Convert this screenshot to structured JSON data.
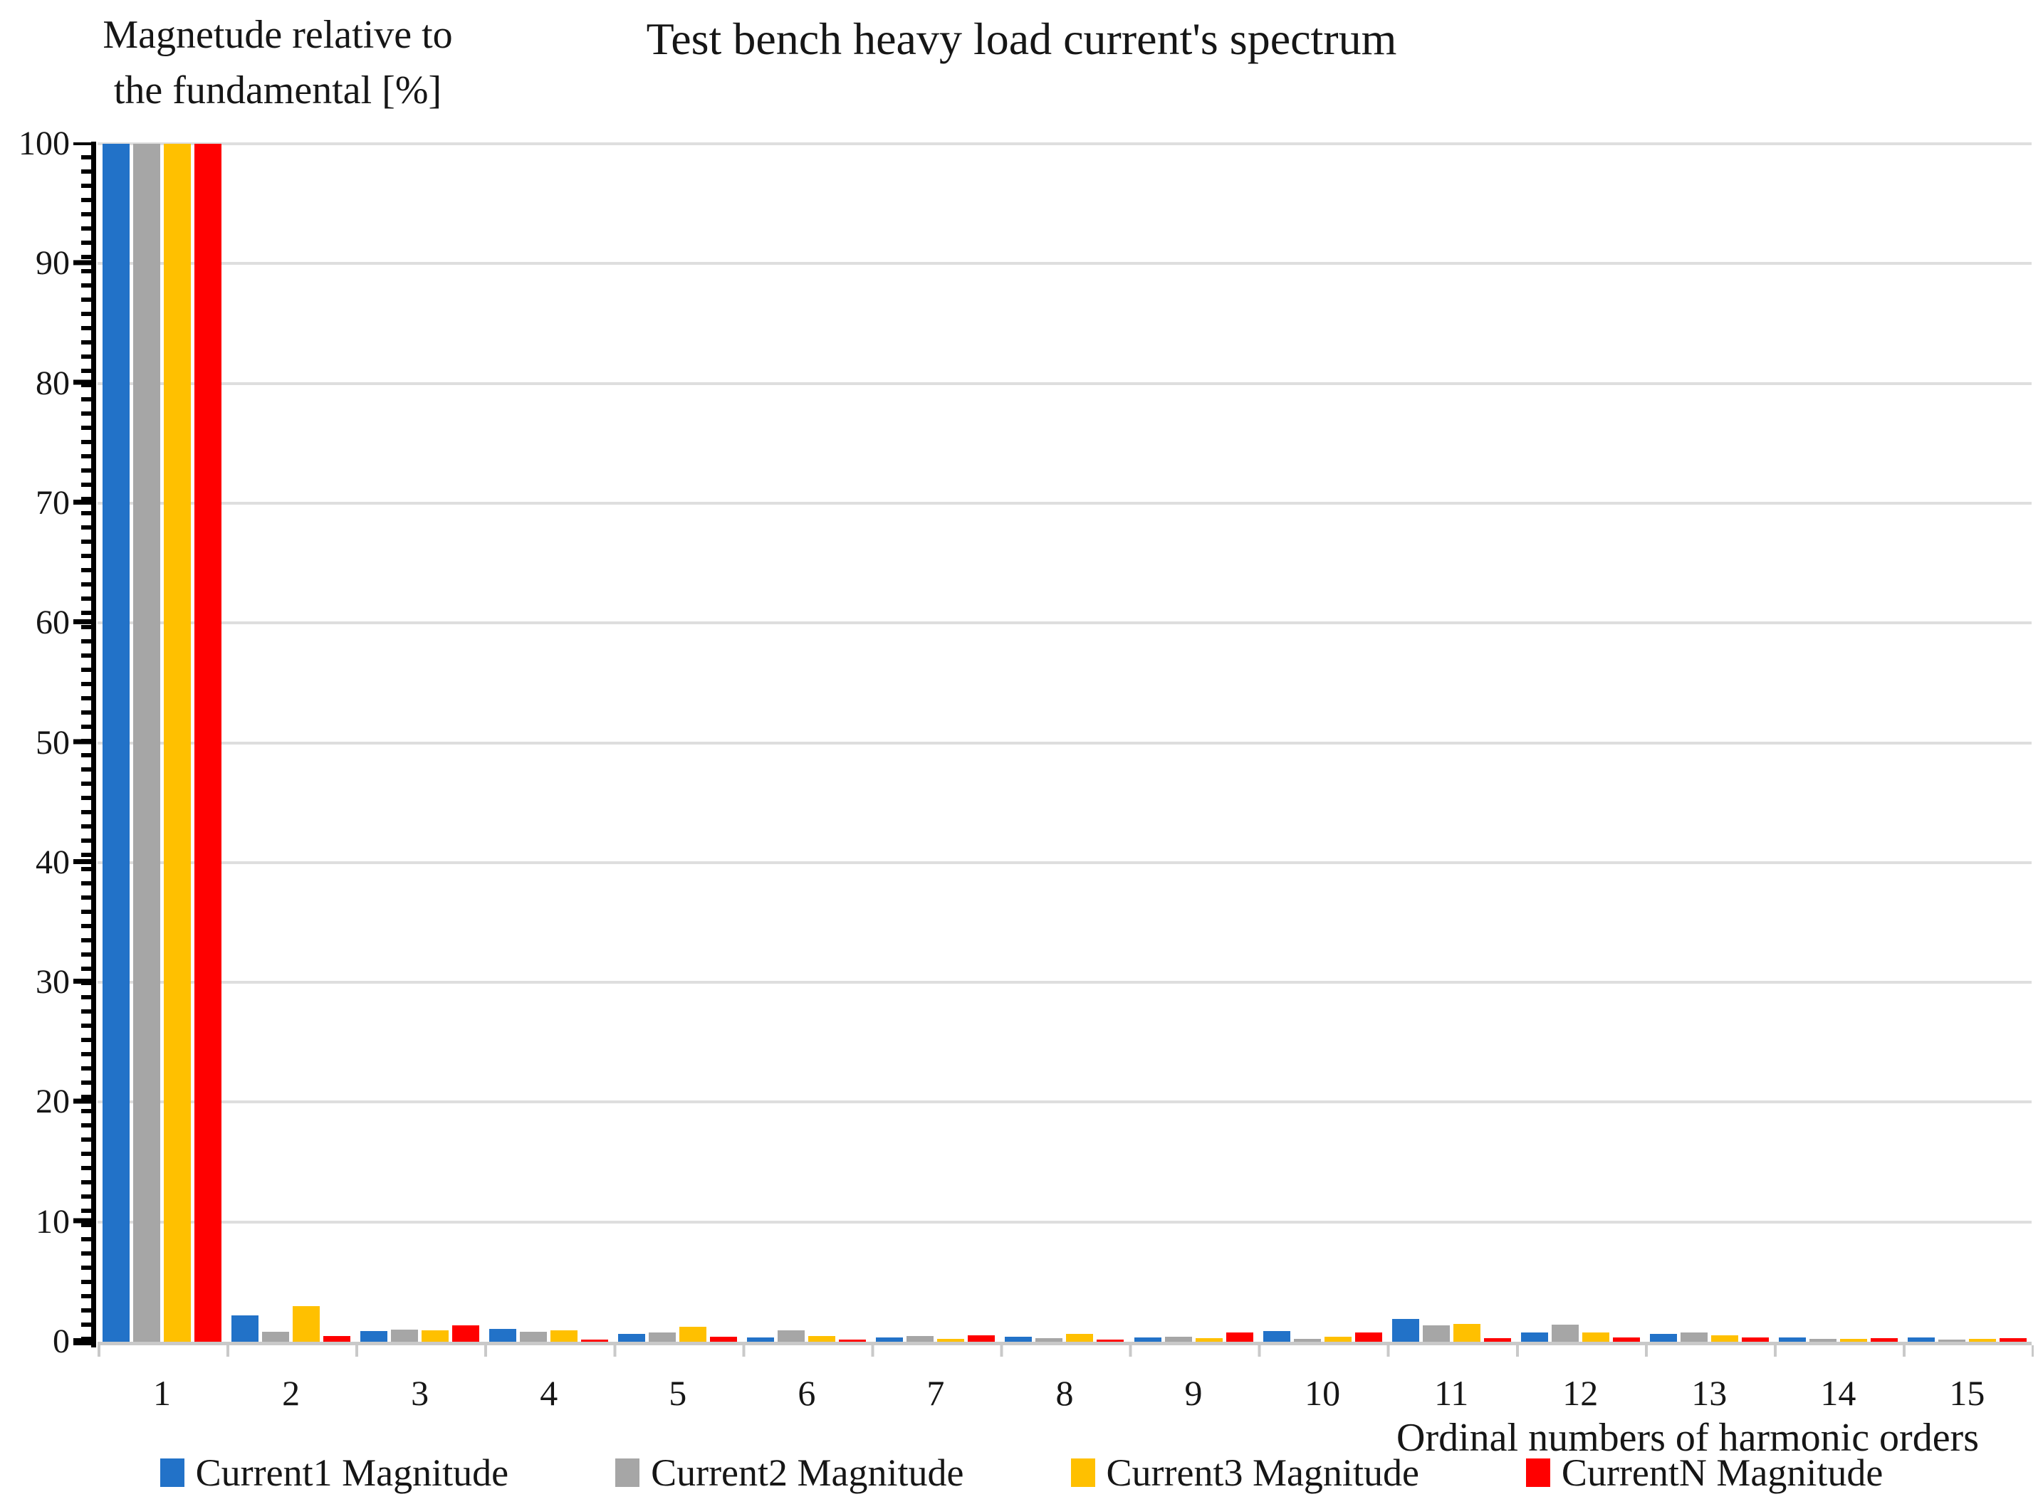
{
  "chart_data": {
    "type": "bar",
    "title": "Test bench heavy load current's spectrum",
    "xlabel": "Ordinal numbers of harmonic orders",
    "ylabel": "Magnetude relative to the fundamental [%]",
    "ylabel_lines": [
      "Magnetude relative to",
      "the fundamental [%]"
    ],
    "categories": [
      "1",
      "2",
      "3",
      "4",
      "5",
      "6",
      "7",
      "8",
      "9",
      "10",
      "11",
      "12",
      "13",
      "14",
      "15"
    ],
    "series": [
      {
        "name": "Current1 Magnitude",
        "color": "#2272C8",
        "values": [
          100,
          2.2,
          0.9,
          1.1,
          0.65,
          0.35,
          0.33,
          0.4,
          0.35,
          0.9,
          1.9,
          0.75,
          0.63,
          0.33,
          0.37
        ]
      },
      {
        "name": "Current2 Magnitude",
        "color": "#A6A6A6",
        "values": [
          100,
          0.85,
          1.0,
          0.85,
          0.8,
          0.95,
          0.45,
          0.32,
          0.4,
          0.24,
          1.35,
          1.4,
          0.8,
          0.22,
          0.18
        ]
      },
      {
        "name": "Current3 Magnitude",
        "color": "#FFC000",
        "values": [
          100,
          3.0,
          0.95,
          0.95,
          1.25,
          0.45,
          0.26,
          0.65,
          0.28,
          0.4,
          1.5,
          0.78,
          0.53,
          0.22,
          0.22
        ]
      },
      {
        "name": "CurrentN Magnitude",
        "color": "#FF0000",
        "values": [
          100,
          0.5,
          1.35,
          0.2,
          0.4,
          0.2,
          0.55,
          0.2,
          0.8,
          0.8,
          0.3,
          0.33,
          0.33,
          0.28,
          0.28
        ]
      }
    ],
    "ylim": [
      0,
      100
    ],
    "yticks": [
      0,
      10,
      20,
      30,
      40,
      50,
      60,
      70,
      80,
      90,
      100
    ],
    "grid": "horizontal-major",
    "legend_position": "bottom"
  },
  "colors": {
    "gridline": "#DEDEDE",
    "x_axis_line": "#C9C9C9",
    "y_axis_line": "#000000",
    "text": "#161616",
    "background": "#FFFFFF"
  }
}
